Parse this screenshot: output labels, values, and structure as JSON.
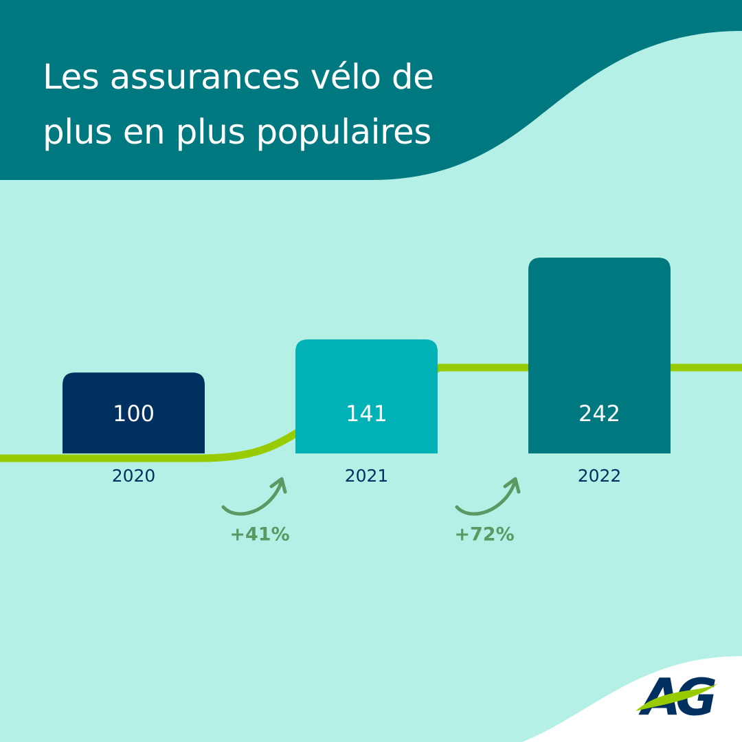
{
  "chart_data": {
    "type": "bar",
    "title": "Les assurances vélo de plus en plus populaires",
    "categories": [
      "2020",
      "2021",
      "2022"
    ],
    "values": [
      100,
      141,
      242
    ],
    "colors": [
      "#00305f",
      "#00b2b5",
      "#00787f"
    ],
    "annotations": [
      "+41%",
      "+72%"
    ],
    "logo": "AG"
  }
}
